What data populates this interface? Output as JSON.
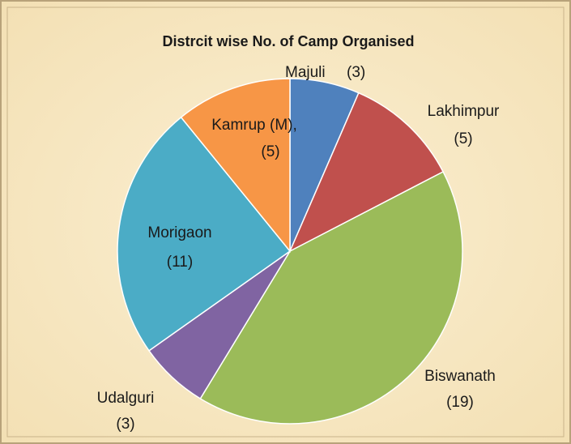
{
  "chart_data": {
    "type": "pie",
    "title": "Distrcit wise No. of Camp Organised",
    "categories": [
      "Majuli",
      "Lakhimpur",
      "Biswanath",
      "Udalguri",
      "Morigaon",
      "Kamrup (M),"
    ],
    "values": [
      3,
      5,
      19,
      3,
      11,
      5
    ],
    "value_labels": [
      "(3)",
      "(5)",
      "(19)",
      "(3)",
      "(11)",
      "(5)"
    ],
    "colors": [
      "#4f81bd",
      "#c0504d",
      "#9bbb59",
      "#8064a2",
      "#4bacc6",
      "#f79646"
    ]
  }
}
